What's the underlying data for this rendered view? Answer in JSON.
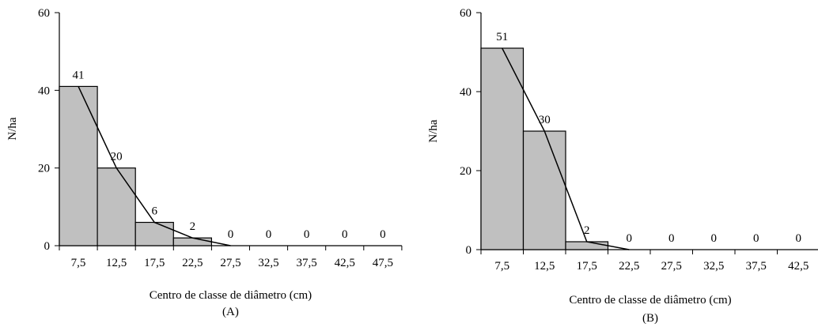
{
  "chart_data": [
    {
      "type": "bar",
      "panel_label": "(A)",
      "title": "",
      "xlabel": "Centro de classe de diâmetro (cm)",
      "ylabel": "N/ha",
      "ylim": [
        0,
        60
      ],
      "yticks": [
        "0",
        "20",
        "40",
        "60"
      ],
      "categories": [
        "7,5",
        "12,5",
        "17,5",
        "22,5",
        "27,5",
        "32,5",
        "37,5",
        "42,5",
        "47,5"
      ],
      "values": [
        41,
        20,
        6,
        2,
        0,
        0,
        0,
        0,
        0
      ],
      "data_labels": [
        "41",
        "20",
        "6",
        "2",
        "0",
        "0",
        "0",
        "0",
        "0"
      ],
      "trend_line": true,
      "grid": false,
      "legend": "none"
    },
    {
      "type": "bar",
      "panel_label": "(B)",
      "title": "",
      "xlabel": "Centro de classe de diâmetro (cm)",
      "ylabel": "N/ha",
      "ylim": [
        0,
        60
      ],
      "yticks": [
        "0",
        "20",
        "40",
        "60"
      ],
      "categories": [
        "7,5",
        "12,5",
        "17,5",
        "22,5",
        "27,5",
        "32,5",
        "37,5",
        "42,5"
      ],
      "values": [
        51,
        30,
        2,
        0,
        0,
        0,
        0,
        0
      ],
      "data_labels": [
        "51",
        "30",
        "2",
        "0",
        "0",
        "0",
        "0",
        "0"
      ],
      "trend_line": true,
      "grid": false,
      "legend": "none"
    }
  ]
}
